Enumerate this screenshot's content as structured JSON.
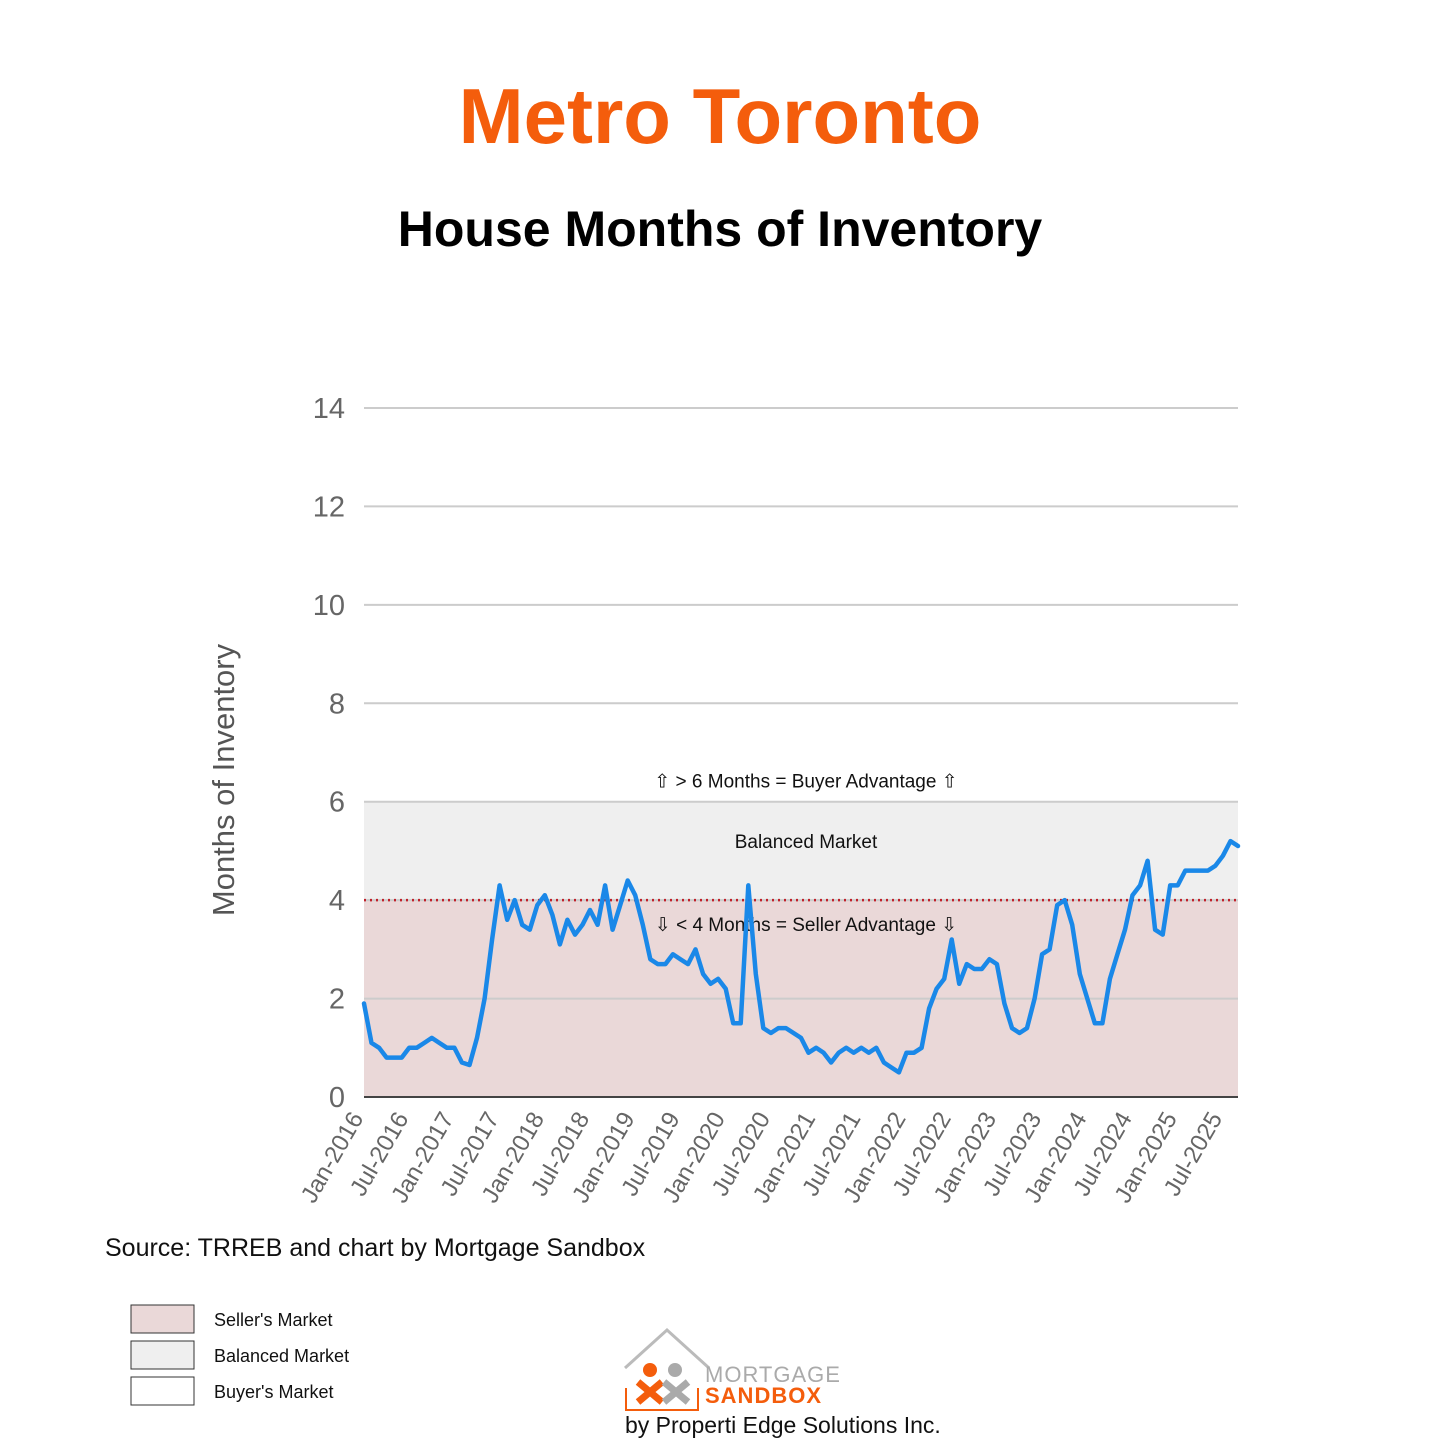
{
  "chart_data": {
    "type": "line",
    "title": "Metro Toronto",
    "subtitle": "House Months of Inventory",
    "y_label": "Months of Inventory",
    "source": "Source: TRREB and chart by Mortgage Sandbox",
    "color": "#1a88e8",
    "categories": [
      "Jan-2016",
      null,
      null,
      null,
      null,
      null,
      "Jul-2016",
      null,
      null,
      null,
      null,
      null,
      "Jan-2017",
      null,
      null,
      null,
      null,
      null,
      "Jul-2017",
      null,
      null,
      null,
      null,
      null,
      "Jan-2018",
      null,
      null,
      null,
      null,
      null,
      "Jul-2018",
      null,
      null,
      null,
      null,
      null,
      "Jan-2019",
      null,
      null,
      null,
      null,
      null,
      "Jul-2019",
      null,
      null,
      null,
      null,
      null,
      "Jan-2020",
      null,
      null,
      null,
      null,
      null,
      "Jul-2020",
      null,
      null,
      null,
      null,
      null,
      "Jan-2021",
      null,
      null,
      null,
      null,
      null,
      "Jul-2021",
      null,
      null,
      null,
      null,
      null,
      "Jan-2022",
      null,
      null,
      null,
      null,
      null,
      "Jul-2022",
      null,
      null,
      null,
      null,
      null,
      "Jan-2023",
      null,
      null,
      null,
      null,
      null,
      "Jul-2023",
      null,
      null,
      null,
      null,
      null,
      "Jan-2024",
      null,
      null,
      null,
      null,
      null,
      "Jul-2024",
      null,
      null,
      null,
      null,
      null,
      "Jan-2025",
      null,
      null,
      null,
      null,
      null,
      "Jul-2025",
      null,
      null
    ],
    "values": [
      1.9,
      1.1,
      1.0,
      0.8,
      0.8,
      0.8,
      1.0,
      1.0,
      1.1,
      1.2,
      1.1,
      1.0,
      1.0,
      0.7,
      0.65,
      1.2,
      2.0,
      3.2,
      4.3,
      3.6,
      4.0,
      3.5,
      3.4,
      3.9,
      4.1,
      3.7,
      3.1,
      3.6,
      3.3,
      3.5,
      3.8,
      3.5,
      4.3,
      3.4,
      3.9,
      4.4,
      4.1,
      3.5,
      2.8,
      2.7,
      2.7,
      2.9,
      2.8,
      2.7,
      3.0,
      2.5,
      2.3,
      2.4,
      2.2,
      1.5,
      1.5,
      4.3,
      2.5,
      1.4,
      1.3,
      1.4,
      1.4,
      1.3,
      1.2,
      0.9,
      1.0,
      0.9,
      0.7,
      0.9,
      1.0,
      0.9,
      1.0,
      0.9,
      1.0,
      0.7,
      0.6,
      0.5,
      0.9,
      0.9,
      1.0,
      1.8,
      2.2,
      2.4,
      3.2,
      2.3,
      2.7,
      2.6,
      2.6,
      2.8,
      2.7,
      1.9,
      1.4,
      1.3,
      1.4,
      2.0,
      2.9,
      3.0,
      3.9,
      4.0,
      3.5,
      2.5,
      2.0,
      1.5,
      1.5,
      2.4,
      2.9,
      3.4,
      4.1,
      4.3,
      4.8,
      3.4,
      3.3,
      4.3,
      4.3,
      4.6,
      4.6,
      4.6,
      4.6,
      4.7,
      4.9,
      5.2,
      5.1
    ],
    "ylim": [
      0,
      14
    ],
    "yticks": [
      0,
      2,
      4,
      6,
      8,
      10,
      12,
      14
    ],
    "grid": true,
    "bands": [
      {
        "name": "Seller's Market",
        "from": 0,
        "to": 4,
        "color": "#ead8d8"
      },
      {
        "name": "Balanced Market",
        "from": 4,
        "to": 6,
        "color": "#efefef"
      },
      {
        "name": "Buyer's Market",
        "from": 6,
        "to": 14,
        "color": "#ffffff"
      }
    ],
    "threshold": 4,
    "annotations": [
      "⇧ > 6 Months = Buyer Advantage ⇧",
      "Balanced Market",
      "⇩ < 4 Months = Seller Advantage ⇩"
    ]
  },
  "logo": {
    "line1": "MORTGAGE",
    "line2": "SANDBOX",
    "byline": "by Properti Edge Solutions Inc."
  }
}
